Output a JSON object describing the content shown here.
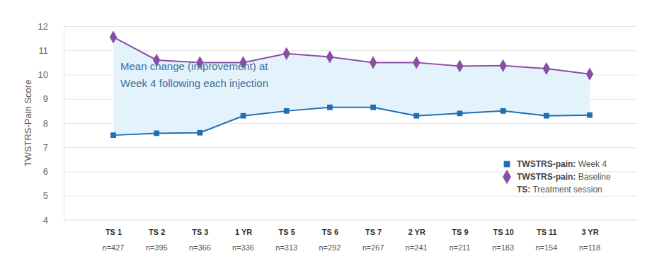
{
  "chart_data": {
    "type": "line",
    "y_label": "TWSTRS-Pain Score",
    "annotation": [
      "Mean change (improvement) at",
      "Week 4 following each injection"
    ],
    "categories": [
      "TS 1",
      "TS 2",
      "TS 3",
      "1 YR",
      "TS 5",
      "TS 6",
      "TS 7",
      "2 YR",
      "TS 9",
      "TS 10",
      "TS 11",
      "3 YR"
    ],
    "x_sublabels": [
      "n=427",
      "n=395",
      "n=366",
      "n=336",
      "n=313",
      "n=292",
      "n=267",
      "n=241",
      "n=211",
      "n=183",
      "n=154",
      "n=118"
    ],
    "series": [
      {
        "name": "TWSTRS-pain: Week 4",
        "color": "#1e6fb6",
        "marker": "square",
        "values": [
          7.5,
          7.58,
          7.6,
          8.3,
          8.5,
          8.65,
          8.65,
          8.3,
          8.4,
          8.5,
          8.3,
          8.33
        ]
      },
      {
        "name": "TWSTRS-pain: Baseline",
        "color": "#8b4ea6",
        "marker": "diamond",
        "values": [
          11.55,
          10.6,
          10.5,
          10.5,
          10.87,
          10.73,
          10.5,
          10.5,
          10.35,
          10.37,
          10.25,
          10.02
        ]
      }
    ],
    "legend_note": "TS: Treatment session",
    "legend": "bottom-right",
    "ylim": [
      4,
      12
    ],
    "yticks": [
      4,
      5,
      6,
      7,
      8,
      9,
      10,
      11,
      12
    ],
    "grid": true
  }
}
